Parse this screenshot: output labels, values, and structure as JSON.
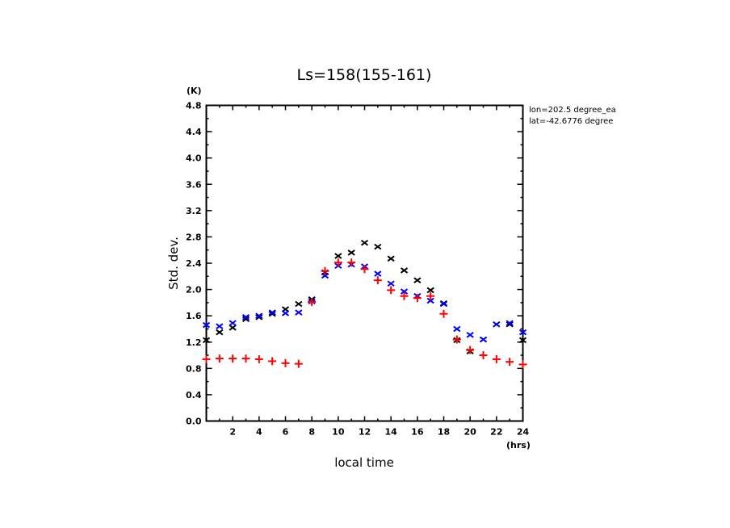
{
  "chart_data": {
    "type": "scatter",
    "title": "Ls=158(155-161)",
    "xlabel": "local time",
    "xunit": "(hrs)",
    "ylabel": "Std. dev.",
    "yunit": "(K)",
    "xlim": [
      0,
      24
    ],
    "ylim": [
      0,
      4.8
    ],
    "x_ticks": [
      2,
      4,
      6,
      8,
      10,
      12,
      14,
      16,
      18,
      20,
      22,
      24
    ],
    "y_ticks": [
      "0.0",
      "0.4",
      "0.8",
      "1.2",
      "1.6",
      "2.0",
      "2.4",
      "2.8",
      "3.2",
      "3.6",
      "4.0",
      "4.4",
      "4.8"
    ],
    "annotations": [
      "lon=202.5 degree_ea",
      "lat=-42.6776 degree"
    ],
    "grid": false,
    "x": [
      0,
      1,
      2,
      3,
      4,
      5,
      6,
      7,
      8,
      9,
      10,
      11,
      12,
      13,
      14,
      15,
      16,
      17,
      18,
      19,
      20,
      21,
      22,
      23,
      24
    ],
    "series": [
      {
        "name": "black-x",
        "marker": "x",
        "color": "#000000",
        "values": [
          1.23,
          1.35,
          1.42,
          1.55,
          1.58,
          1.63,
          1.7,
          1.78,
          1.85,
          2.26,
          2.51,
          2.56,
          2.71,
          2.65,
          2.47,
          2.29,
          2.14,
          1.99,
          1.79,
          1.23,
          1.06,
          1.24,
          1.47,
          1.47,
          1.23
        ]
      },
      {
        "name": "blue-x",
        "marker": "x",
        "color": "#0000ff",
        "values": [
          1.46,
          1.44,
          1.49,
          1.58,
          1.6,
          1.65,
          1.64,
          1.65,
          1.82,
          2.21,
          2.36,
          2.38,
          2.35,
          2.24,
          2.09,
          1.97,
          1.9,
          1.83,
          1.78,
          1.4,
          1.31,
          1.24,
          1.47,
          1.49,
          1.35
        ]
      },
      {
        "name": "red-plus",
        "marker": "+",
        "color": "#ff0000",
        "values": [
          0.94,
          0.95,
          0.95,
          0.95,
          0.94,
          0.91,
          0.88,
          0.87,
          1.81,
          2.28,
          2.41,
          2.41,
          2.31,
          2.14,
          1.99,
          1.9,
          1.87,
          1.9,
          1.63,
          1.24,
          1.08,
          1.0,
          0.94,
          0.9,
          0.86
        ]
      }
    ]
  }
}
